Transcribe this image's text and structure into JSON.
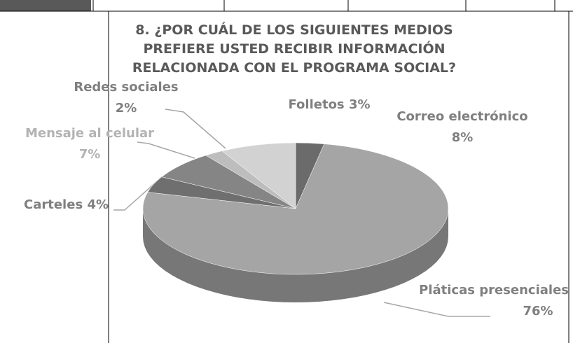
{
  "chart_data": {
    "type": "pie",
    "title": "8. ¿POR CUÁL DE LOS SIGUIENTES MEDIOS PREFIERE USTED RECIBIR INFORMACIÓN RELACIONADA CON EL PROGRAMA SOCIAL?",
    "categories": [
      "Folletos",
      "Pláticas presenciales",
      "Carteles",
      "Mensaje al celular",
      "Redes sociales",
      "Correo electrónico"
    ],
    "values": [
      3,
      76,
      4,
      7,
      2,
      8
    ],
    "value_labels": [
      "3%",
      "76%",
      "4%",
      "7%",
      "2%",
      "8%"
    ],
    "colors": [
      "#6b6b6b",
      "#a5a5a5",
      "#6f6f6f",
      "#858585",
      "#bdbdbd",
      "#d2d2d2"
    ]
  }
}
